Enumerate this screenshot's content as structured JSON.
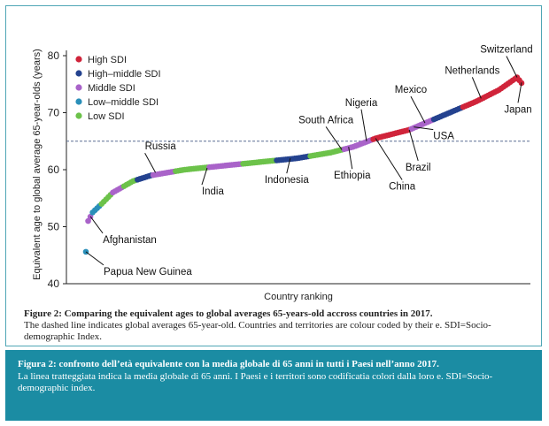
{
  "chart_data": {
    "type": "scatter",
    "ylabel": "Equivalent age to global average 65-year-olds (years)",
    "xlabel": "Country ranking",
    "ylim": [
      40,
      80
    ],
    "yticks": [
      40,
      50,
      60,
      70,
      80
    ],
    "reference_line": {
      "y": 65,
      "style": "dashed"
    },
    "legend": {
      "placement": "top-left",
      "entries": [
        {
          "name": "High SDI",
          "color": "#d0243a"
        },
        {
          "name": "High–middle SDI",
          "color": "#24428f"
        },
        {
          "name": "Middle SDI",
          "color": "#a963c9"
        },
        {
          "name": "Low–middle SDI",
          "color": "#2a8fb9"
        },
        {
          "name": "Low SDI",
          "color": "#6cc24a"
        }
      ]
    },
    "curve": {
      "rank_max": 195,
      "knots": [
        [
          1,
          45.6
        ],
        [
          2,
          51
        ],
        [
          4,
          52.5
        ],
        [
          8,
          54
        ],
        [
          13,
          56
        ],
        [
          22,
          58
        ],
        [
          30,
          59
        ],
        [
          45,
          60
        ],
        [
          70,
          61
        ],
        [
          95,
          62
        ],
        [
          110,
          63
        ],
        [
          120,
          64
        ],
        [
          130,
          65.5
        ],
        [
          145,
          67
        ],
        [
          160,
          69.5
        ],
        [
          175,
          72
        ],
        [
          185,
          74
        ],
        [
          193,
          76.2
        ],
        [
          195,
          75.2
        ]
      ],
      "segments": [
        {
          "from": 1,
          "to": 1,
          "sdi": "Low–middle SDI"
        },
        {
          "from": 2,
          "to": 3,
          "sdi": "Middle SDI"
        },
        {
          "from": 4,
          "to": 7,
          "sdi": "Low–middle SDI"
        },
        {
          "from": 8,
          "to": 12,
          "sdi": "Low SDI"
        },
        {
          "from": 13,
          "to": 17,
          "sdi": "Middle SDI"
        },
        {
          "from": 18,
          "to": 23,
          "sdi": "Low SDI"
        },
        {
          "from": 24,
          "to": 30,
          "sdi": "High–middle SDI"
        },
        {
          "from": 31,
          "to": 40,
          "sdi": "Middle SDI"
        },
        {
          "from": 41,
          "to": 55,
          "sdi": "Low SDI"
        },
        {
          "from": 56,
          "to": 70,
          "sdi": "Middle SDI"
        },
        {
          "from": 71,
          "to": 85,
          "sdi": "Low SDI"
        },
        {
          "from": 86,
          "to": 100,
          "sdi": "High–middle SDI"
        },
        {
          "from": 101,
          "to": 115,
          "sdi": "Low SDI"
        },
        {
          "from": 116,
          "to": 128,
          "sdi": "Middle SDI"
        },
        {
          "from": 129,
          "to": 145,
          "sdi": "High SDI"
        },
        {
          "from": 146,
          "to": 155,
          "sdi": "Middle SDI"
        },
        {
          "from": 156,
          "to": 168,
          "sdi": "High–middle SDI"
        },
        {
          "from": 169,
          "to": 195,
          "sdi": "High SDI"
        }
      ]
    },
    "annotations": [
      {
        "label": "Papua New Guinea",
        "rank": 1,
        "value": 45.6,
        "text_side": "below"
      },
      {
        "label": "Afghanistan",
        "rank": 3,
        "value": 51.8,
        "text_side": "below"
      },
      {
        "label": "Russia",
        "rank": 32,
        "value": 59.5,
        "text_side": "above"
      },
      {
        "label": "India",
        "rank": 55,
        "value": 60.3,
        "text_side": "below"
      },
      {
        "label": "Indonesia",
        "rank": 92,
        "value": 62.0,
        "text_side": "below"
      },
      {
        "label": "South Africa",
        "rank": 115,
        "value": 63.5,
        "text_side": "above"
      },
      {
        "label": "Ethiopia",
        "rank": 118,
        "value": 64.0,
        "text_side": "below"
      },
      {
        "label": "Nigeria",
        "rank": 126,
        "value": 65.0,
        "text_side": "above"
      },
      {
        "label": "China",
        "rank": 130,
        "value": 65.5,
        "text_side": "below"
      },
      {
        "label": "Brazil",
        "rank": 145,
        "value": 67.0,
        "text_side": "below"
      },
      {
        "label": "USA",
        "rank": 147,
        "value": 67.5,
        "text_side": "below"
      },
      {
        "label": "Mexico",
        "rank": 152,
        "value": 68.2,
        "text_side": "above"
      },
      {
        "label": "Netherlands",
        "rank": 177,
        "value": 72.5,
        "text_side": "above"
      },
      {
        "label": "Switzerland",
        "rank": 193,
        "value": 76.2,
        "text_side": "above"
      },
      {
        "label": "Japan",
        "rank": 195,
        "value": 75.3,
        "text_side": "below"
      }
    ]
  },
  "caption_en": {
    "title": "Figure 2: Comparing the equivalent ages to global averages 65-years-old accross countries in 2017.",
    "body": "The dashed line indicates global averages 65-year-old. Countries and territories are colour coded by their e. SDI=Socio-demographic Index."
  },
  "caption_it": {
    "title": "Figura 2: confronto dell’età equivalente con la media globale di 65 anni in tutti i Paesi nell’anno 2017.",
    "body": "La linea tratteggiata indica la media globale di 65 anni. I Paesi e i territori sono codificatia colori dalla loro e. SDI=Socio-demographic index."
  }
}
